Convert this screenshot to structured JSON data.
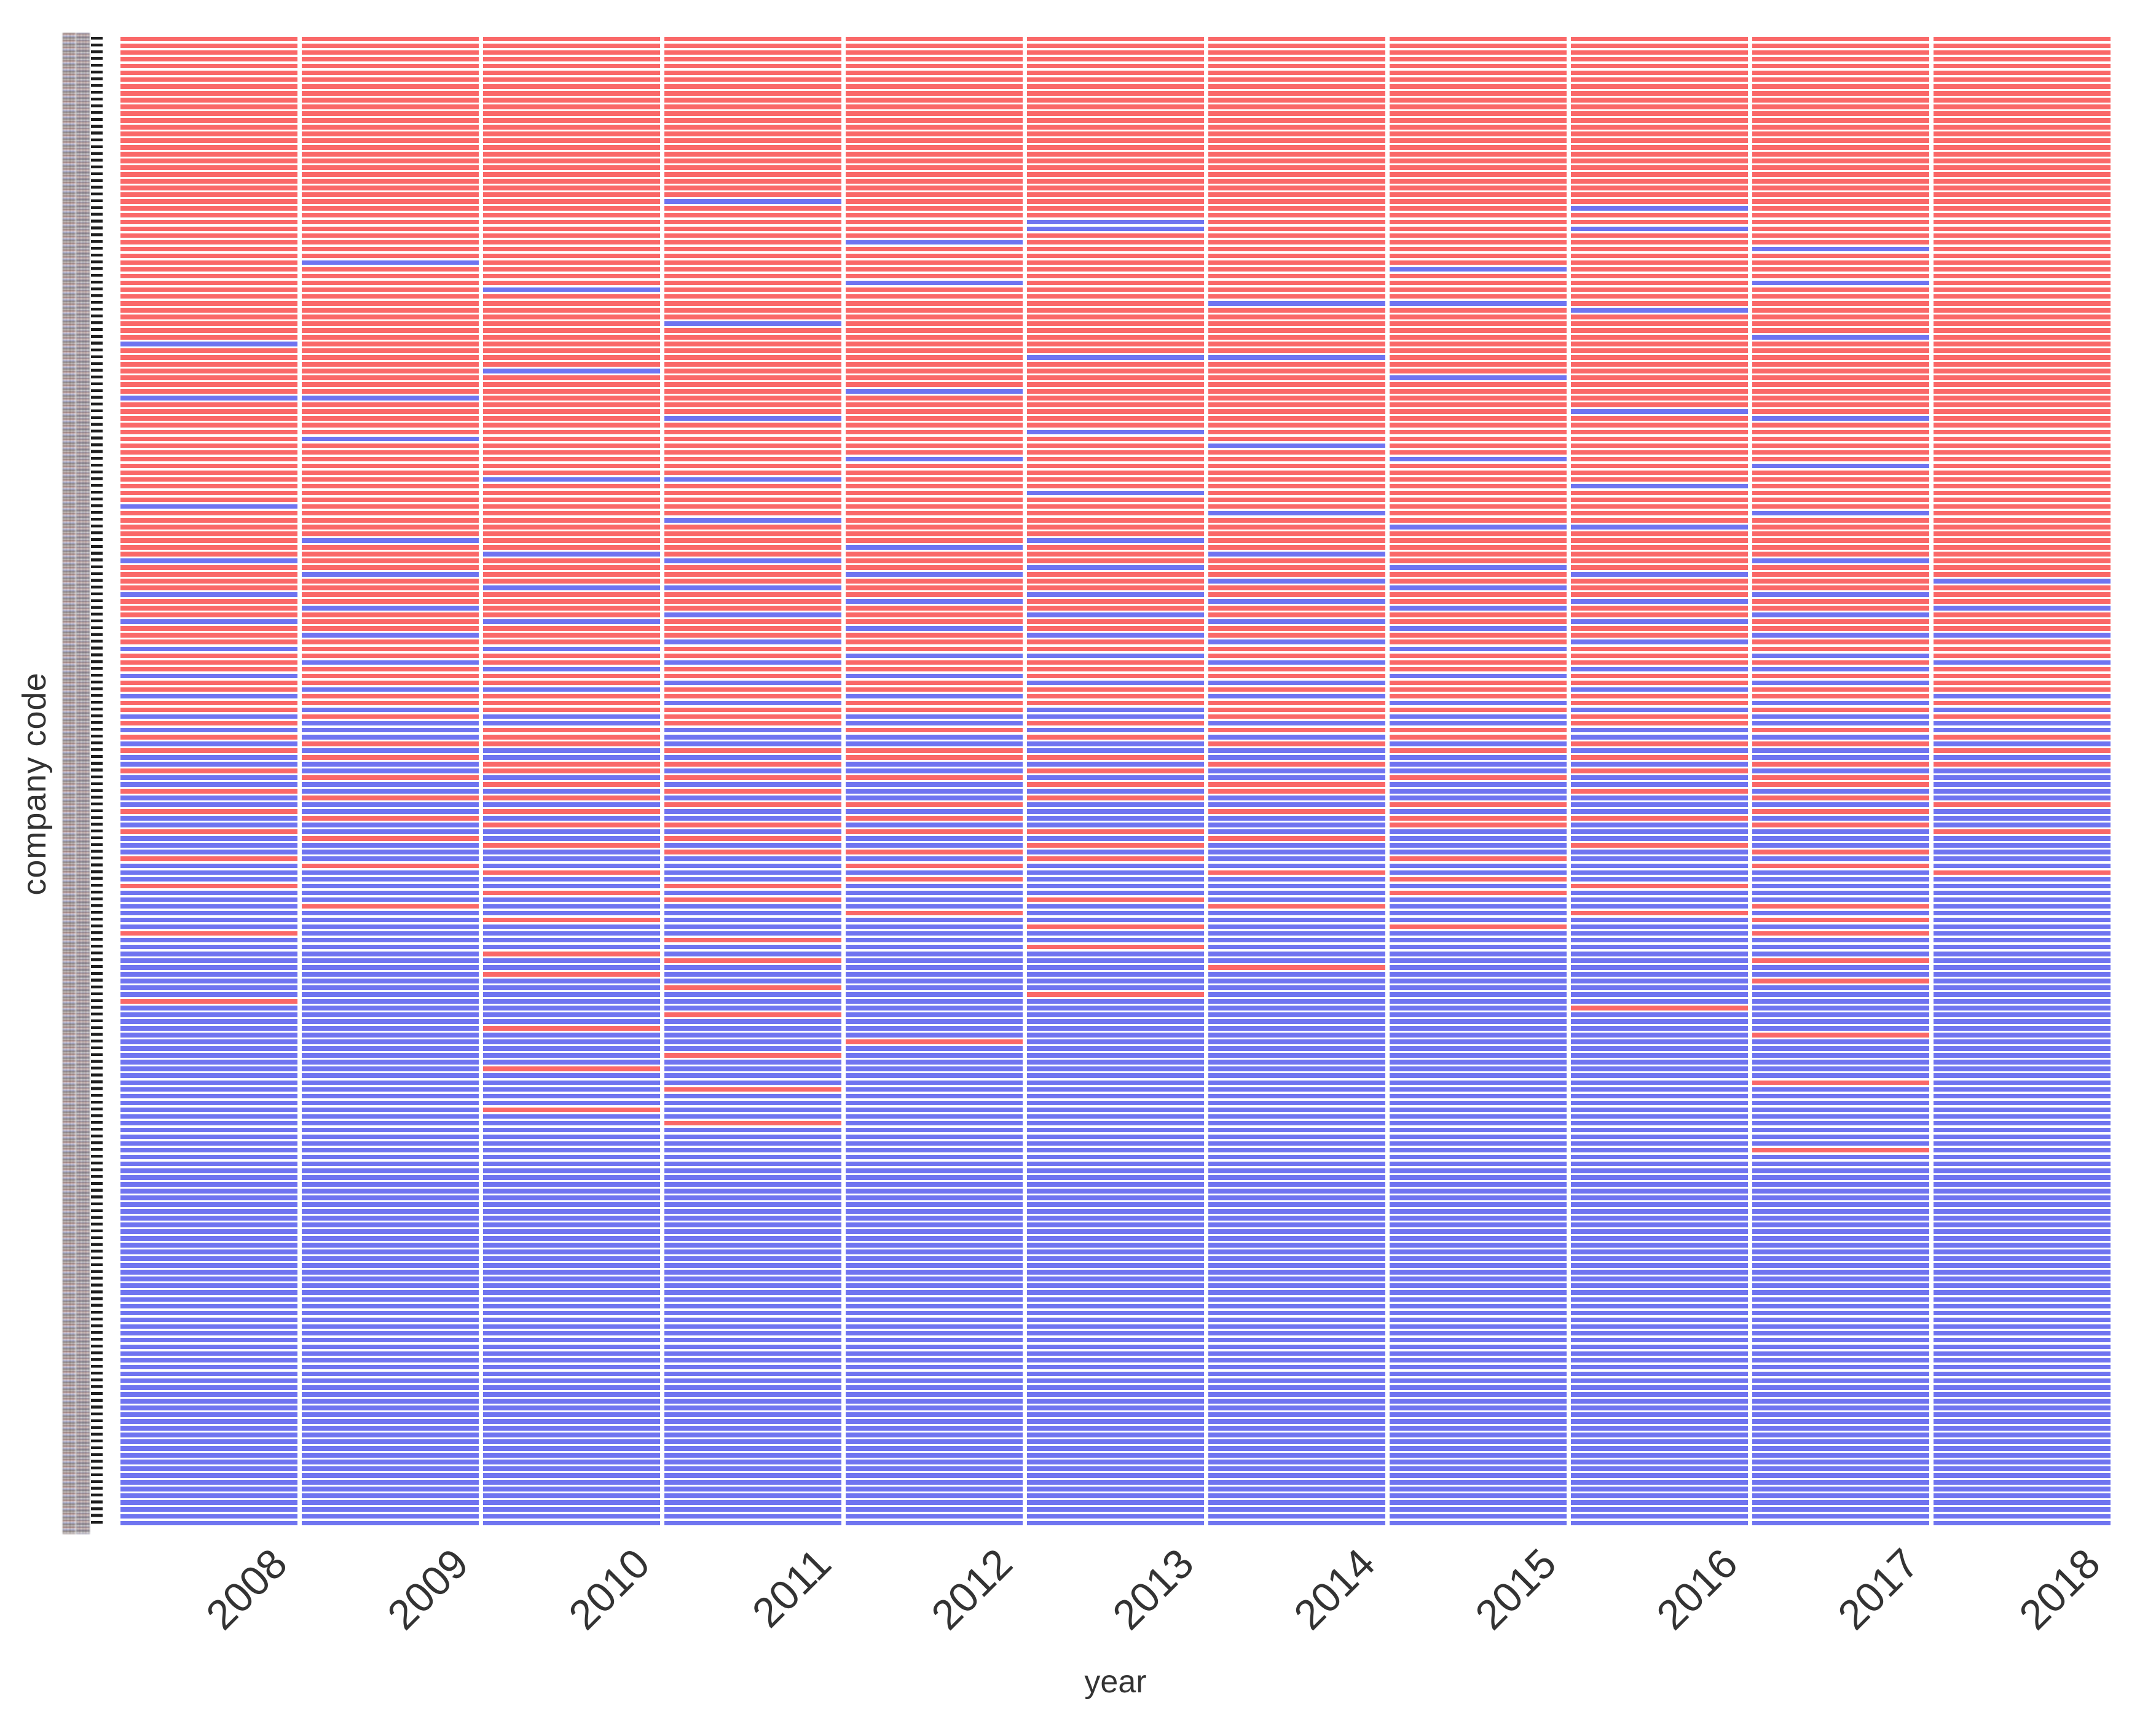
{
  "figure": {
    "background": "#ffffff",
    "description": "Binary heatmap of company status by year; red and blue tiles, one row per company code"
  },
  "chart_data": {
    "type": "heatmap",
    "title": "",
    "xlabel": "year",
    "ylabel": "company code",
    "x_categories": [
      "2008",
      "2009",
      "2010",
      "2011",
      "2012",
      "2013",
      "2014",
      "2015",
      "2016",
      "2017",
      "2018"
    ],
    "n_rows": 220,
    "y_tick_labels": "illegible micro-text company codes (one per row, unreadable at this resolution)",
    "legend": "none visible",
    "colors": {
      "R": "#fa6868",
      "B": "#6f74f0"
    },
    "value_encoding": {
      "R": "red tile",
      "B": "blue tile"
    },
    "layout_hints": {
      "grid": "white gaps between tiles",
      "x_tick_rotation": 45,
      "rows_sorted": "red-dominant companies at top, blue-dominant at bottom"
    },
    "rows": [
      "RRRRRRRRRRR",
      "RRRRRRRRRRR",
      "RRRRRRRRRRR",
      "RRRRRRRRRRR",
      "RRRRRRRRRRR",
      "RRRRRRRRRRR",
      "RRRRRRRRRRR",
      "RRRRRRRRRRR",
      "RRRRRRRRRRR",
      "RRRRRRRRRRR",
      "RRRRRRRRRRR",
      "RRRRRRRRRRR",
      "RRRRRRRRRRR",
      "RRRRRRRRRRR",
      "RRRRRRRRRRR",
      "RRRRRRRRRRR",
      "RRRRRRRRRRR",
      "RRRRRRRRRRR",
      "RRRRRRRRRRR",
      "RRRRRRRRRRR",
      "RRRRRRRRRRR",
      "RRRRRRRRRRR",
      "RRRRRRRRRRR",
      "RRRRRRRRRRR",
      "RRRBRRRRRRR",
      "RRRRRRRRBRR",
      "RRRRRRRRRRR",
      "RRRRRBRRRRR",
      "RRRRRBRRBRR",
      "RRRRRRRRRRR",
      "RRRRBRRRRRR",
      "RRRRRRRRRBR",
      "RRRRRRRRRRR",
      "RBRRRRRRRRR",
      "RRRRRRRBRRR",
      "RRRRRRRRRRR",
      "RRRRBRRRRBR",
      "RRBRRRRRRRR",
      "RRRRRRRRRRR",
      "RRRRRRBBRRR",
      "RRRRRRRRBRR",
      "RRRRRRRRRRR",
      "RRRBRRRRRRR",
      "RRRRRRRRRRR",
      "RRRRRRRRRBR",
      "BRRRRRRRRRR",
      "RRRRRRRRRRR",
      "RRRRRBBRRRR",
      "RRRRRRRRRRR",
      "RRBRRRRRRRR",
      "RRRRRRRBRRR",
      "RRRRRRRRRRR",
      "RRRRBRRRRRR",
      "BBRRRRRRRRR",
      "RRRRRRRRRRR",
      "RRRRRRRRBRR",
      "RRRBRRRRRBR",
      "RRRRRRRRRRR",
      "RRRRRBRRRRR",
      "RBRRRRRRRRR",
      "RRRRRRBRRRR",
      "RRRRRRRRRRR",
      "RRRRBRRBRRR",
      "RRRRRRRRRBR",
      "RRRRRRRRRRR",
      "RRBBRRRRRRR",
      "RRRRRRRRBRR",
      "RRRRRBRRRRR",
      "RRRRRRRRRRR",
      "BRRRRRRRRRR",
      "RRRRRRBRRBR",
      "RRRBRRRRRRR",
      "RRRRRRRBBRR",
      "RRRRRRRRRRR",
      "RBRRRBRRRRR",
      "RRRRBRRRRRR",
      "RRBRRRBRRRR",
      "BRRBRRRRRBR",
      "RRRRRBRBRRR",
      "RBRRBRRRBRR",
      "RRRRRRBRRRB",
      "RRBBRRRBRRR",
      "BRRRRBRRRBR",
      "RRRRBRBRBRR",
      "RBRRRRRBRRB",
      "RRRBRBRRRBR",
      "BRBRRRBRBRR",
      "RRRRBRRBRRR",
      "RBRRRBRRRBB",
      "RRRBRRBRBRR",
      "BRBRRRRBRRR",
      "RRRRBBRRRBR",
      "RBRBRRBRRRB",
      "RRBRRRRRBBR",
      "BRRRBRRBRRR",
      "RRRBRBBRRBR",
      "RBBRRRRRBRR",
      "BRRRBRBRRRB",
      "RRRBRRRBRBR",
      "RBRRRBRRBRB",
      "BRBRBBRBRBR",
      "RBBRBRBBRBB",
      "BBRBRBRRBRB",
      "RBRBBRBRBBR",
      "BRRBBBRBRRB",
      "RBBRRBBRBBR",
      "BRBBRRBBRBB",
      "BBRRBBRBBRR",
      "RBRBBRBBRBB",
      "BRBRRBBRBRB",
      "BBRBBRRBBRB",
      "RBBRBBRBRBB",
      "BRRBBRBBBRB",
      "BBBRRBBRBBR",
      "RBRBBBRBBRB",
      "BRBBRBBRRBB",
      "BBRRBBBRBRB",
      "RBBBRRBBBBR",
      "BRBRBBRBBBB",
      "BBRBBRBBRBB",
      "BBBRRBBBBRB",
      "RBBBBRBRBBB",
      "BRBBRBBBBRB",
      "BBRBBBRBBBR",
      "BBBBRBBRBBB",
      "RBBRBBBBRBB",
      "BBRBBBBRBBB",
      "BBBRBRBBBBB",
      "BRBBBBRBBRB",
      "BBBBRBBBRBB",
      "BBRBBBBBBRB",
      "BBBBBRBRBBB",
      "RBBBBBBBBRB",
      "BBBRBBBBBBB",
      "BBBBBRBBBBB",
      "BBRBBBBBBBB",
      "BBBRBBBBBRB",
      "BBBBBBRBBBB",
      "BBRBBBBBBBB",
      "BBBBBBBBBRB",
      "BBBRBBBBBBB",
      "BBBBBRBBBBB",
      "RBBBBBBBBBB",
      "BBBBBBBBRBB",
      "BBBRBBBBBBB",
      "BBBBBBBBBBB",
      "BBRBBBBBBBB",
      "BBBBBBBBBRB",
      "BBBBRBBBBBB",
      "BBBBBBBBBBB",
      "BBBRBBBBBBB",
      "BBBBBBBBBBB",
      "BBRBBBBBBBB",
      "BBBBBBBBBBB",
      "BBBBBBBBBRB",
      "BBBRBBBBBBB",
      "BBBBBBBBBBB",
      "BBBBBBBBBBB",
      "BBRBBBBBBBB",
      "BBBBBBBBBBB",
      "BBBRBBBBBBB",
      "BBBBBBBBBBB",
      "BBBBBBBBBBB",
      "BBBBBBBBBBB",
      "BBBBBBBBBRB",
      "BBBBBBBBBBB",
      "BBBBBBBBBBB",
      "BBBBBBBBBBB",
      "BBBBBBBBBBB",
      "BBBBBBBBBBB",
      "BBBBBBBBBBB",
      "BBBBBBBBBBB",
      "BBBBBBBBBBB",
      "BBBBBBBBBBB",
      "BBBBBBBBBBB",
      "BBBBBBBBBBB",
      "BBBBBBBBBBB",
      "BBBBBBBBBBB",
      "BBBBBBBBBBB",
      "BBBBBBBBBBB",
      "BBBBBBBBBBB",
      "BBBBBBBBBBB",
      "BBBBBBBBBBB",
      "BBBBBBBBBBB",
      "BBBBBBBBBBB",
      "BBBBBBBBBBB",
      "BBBBBBBBBBB",
      "BBBBBBBBBBB",
      "BBBBBBBBBBB",
      "BBBBBBBBBBB",
      "BBBBBBBBBBB",
      "BBBBBBBBBBB",
      "BBBBBBBBBBB",
      "BBBBBBBBBBB",
      "BBBBBBBBBBB",
      "BBBBBBBBBBB",
      "BBBBBBBBBBB",
      "BBBBBBBBBBB",
      "BBBBBBBBBBB",
      "BBBBBBBBBBB",
      "BBBBBBBBBBB",
      "BBBBBBBBBBB",
      "BBBBBBBBBBB",
      "BBBBBBBBBBB",
      "BBBBBBBBBBB",
      "BBBBBBBBBBB",
      "BBBBBBBBBBB",
      "BBBBBBBBBBB",
      "BBBBBBBBBBB",
      "BBBBBBBBBBB",
      "BBBBBBBBBBB",
      "BBBBBBBBBBB",
      "BBBBBBBBBBB",
      "BBBBBBBBBBB",
      "BBBBBBBBBBB",
      "BBBBBBBBBBB",
      "BBBBBBBBBBB",
      "BBBBBBBBBBB",
      "BBBBBBBBBBB",
      "BBBBBBBBBBB"
    ]
  }
}
